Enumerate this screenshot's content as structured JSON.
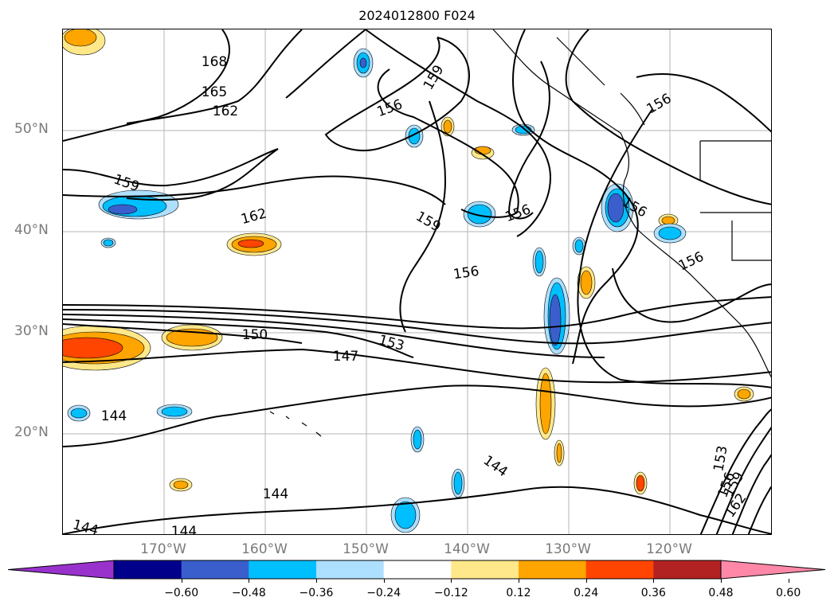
{
  "title": "2024012800 F024",
  "lat_labels": [
    "50°N",
    "40°N",
    "30°N",
    "20°N"
  ],
  "lon_labels": [
    "170°W",
    "160°W",
    "150°W",
    "140°W",
    "130°W",
    "120°W"
  ],
  "contour_labels": [
    "168",
    "165",
    "162",
    "159",
    "156",
    "156",
    "162",
    "159",
    "159",
    "156",
    "156",
    "156",
    "156",
    "150",
    "153",
    "147",
    "144",
    "144",
    "144",
    "144",
    "144",
    "153",
    "156",
    "159",
    "162"
  ],
  "colorbar": {
    "tick_labels": [
      "−0.60",
      "−0.48",
      "−0.36",
      "−0.24",
      "−0.12",
      "0.12",
      "0.24",
      "0.36",
      "0.48",
      "0.60"
    ],
    "colors": [
      "#9932CC",
      "#00008B",
      "#3A5FCD",
      "#00BFFF",
      "#ADDFFF",
      "#FFFFFF",
      "#FFE88A",
      "#FFA500",
      "#FF4500",
      "#B22222",
      "#FF88A8"
    ]
  }
}
